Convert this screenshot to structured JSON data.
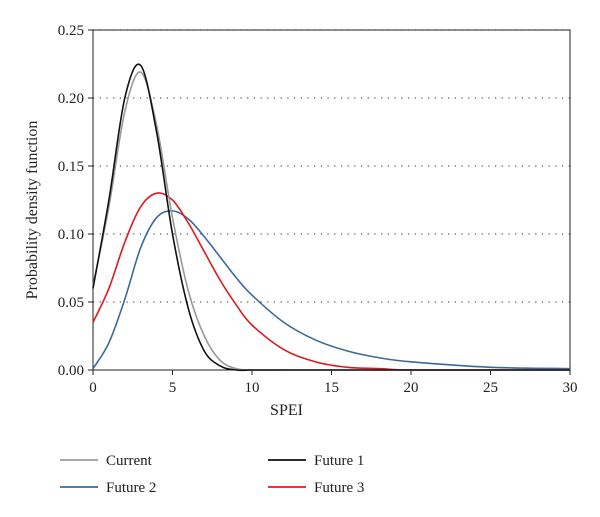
{
  "chart_data": {
    "type": "line",
    "title": "",
    "xlabel": "SPEI",
    "ylabel": "Probability density function",
    "xlim": [
      0,
      30
    ],
    "ylim": [
      0,
      0.25
    ],
    "xticks": [
      "0",
      "5",
      "10",
      "15",
      "20",
      "25",
      "30"
    ],
    "yticks": [
      "0.00",
      "0.05",
      "0.10",
      "0.15",
      "0.20",
      "0.25"
    ],
    "grid": "horizontal dotted",
    "legend_position": "bottom",
    "x": [
      0,
      1,
      2,
      3,
      4,
      5,
      6,
      7,
      8,
      9,
      10,
      12,
      14,
      16,
      18,
      20,
      25,
      30
    ],
    "series": [
      {
        "name": "Current",
        "color": "#999999",
        "values": [
          0.062,
          0.12,
          0.19,
          0.219,
          0.18,
          0.112,
          0.058,
          0.025,
          0.007,
          0.001,
          0,
          0,
          0,
          0,
          0,
          0,
          0,
          0
        ]
      },
      {
        "name": "Future 1",
        "color": "#111111",
        "values": [
          0.06,
          0.125,
          0.2,
          0.224,
          0.175,
          0.1,
          0.045,
          0.014,
          0.003,
          0,
          0,
          0,
          0,
          0,
          0,
          0,
          0,
          0
        ]
      },
      {
        "name": "Future 2",
        "color": "#3c6a98",
        "values": [
          0.001,
          0.02,
          0.052,
          0.09,
          0.112,
          0.117,
          0.111,
          0.098,
          0.083,
          0.068,
          0.055,
          0.035,
          0.022,
          0.014,
          0.009,
          0.006,
          0.002,
          0.001
        ]
      },
      {
        "name": "Future 3",
        "color": "#e0191f",
        "values": [
          0.035,
          0.06,
          0.094,
          0.12,
          0.13,
          0.125,
          0.108,
          0.087,
          0.066,
          0.048,
          0.033,
          0.015,
          0.006,
          0.002,
          0.001,
          0,
          0,
          0
        ]
      }
    ]
  }
}
